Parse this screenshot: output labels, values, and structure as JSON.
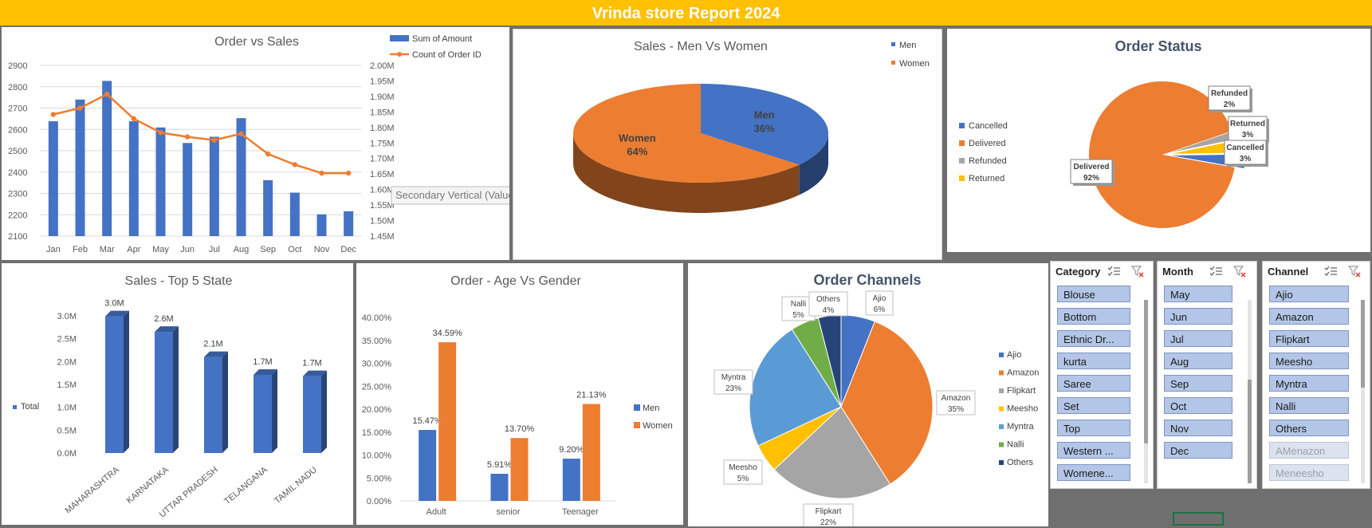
{
  "header": {
    "title": "Vrinda store Report 2024"
  },
  "charts": {
    "order_sales": {
      "type": "bar",
      "title": "Order vs Sales",
      "categories": [
        "Jan",
        "Feb",
        "Mar",
        "Apr",
        "May",
        "Jun",
        "Jul",
        "Aug",
        "Sep",
        "Oct",
        "Nov",
        "Dec"
      ],
      "series": [
        {
          "name": "Sum of Amount",
          "kind": "bar",
          "axis": "secondary",
          "values": [
            1.82,
            1.89,
            1.95,
            1.82,
            1.8,
            1.75,
            1.77,
            1.83,
            1.63,
            1.59,
            1.52,
            1.53
          ]
        },
        {
          "name": "Count of Order ID",
          "kind": "line",
          "axis": "primary",
          "values": [
            2670,
            2700,
            2765,
            2650,
            2585,
            2565,
            2550,
            2580,
            2485,
            2435,
            2395,
            2395
          ]
        }
      ],
      "ylim": [
        2100,
        2900
      ],
      "yticks": [
        "2900",
        "2800",
        "2700",
        "2600",
        "2500",
        "2400",
        "2300",
        "2200",
        "2100"
      ],
      "y2lim": [
        1.45,
        2.0
      ],
      "y2ticks": [
        "2.00M",
        "1.95M",
        "1.90M",
        "1.85M",
        "1.80M",
        "1.75M",
        "1.70M",
        "1.65M",
        "1.60M",
        "1.55M",
        "1.50M",
        "1.45M"
      ],
      "tooltip": "Secondary Vertical (Value) Axis",
      "colors": {
        "bar": "#4472c4",
        "line": "#ed7d31"
      }
    },
    "men_women": {
      "type": "pie",
      "title": "Sales - Men Vs Women",
      "slices": [
        {
          "name": "Men",
          "label": "Men",
          "value": 36,
          "pct": "36%",
          "color": "#4472c4"
        },
        {
          "name": "Women",
          "label": "Women",
          "value": 64,
          "pct": "64%",
          "color": "#ed7d31"
        }
      ]
    },
    "order_status": {
      "type": "pie",
      "title": "Order Status",
      "legend": [
        "Cancelled",
        "Delivered",
        "Refunded",
        "Returned"
      ],
      "slices": [
        {
          "name": "Cancelled",
          "value": 3,
          "pct": "3%",
          "color": "#4472c4"
        },
        {
          "name": "Delivered",
          "value": 92,
          "pct": "92%",
          "color": "#ed7d31"
        },
        {
          "name": "Refunded",
          "value": 2,
          "pct": "2%",
          "color": "#a5a5a5"
        },
        {
          "name": "Returned",
          "value": 3,
          "pct": "3%",
          "color": "#ffc000"
        }
      ]
    },
    "top_states": {
      "type": "bar",
      "title": "Sales - Top 5 State",
      "legend": "Total",
      "categories": [
        "MAHARASHTRA",
        "KARNATAKA",
        "UTTAR PRADESH",
        "TELANGANA",
        "TAMIL NADU"
      ],
      "values": [
        2.99,
        2.65,
        2.1,
        1.71,
        1.68
      ],
      "labels": [
        "3.0M",
        "2.6M",
        "2.1M",
        "1.7M",
        "1.7M"
      ],
      "ylim": [
        0,
        3.0
      ],
      "yticks": [
        "0.0M",
        "0.5M",
        "1.0M",
        "1.5M",
        "2.0M",
        "2.5M",
        "3.0M"
      ],
      "color": "#4472c4"
    },
    "age_gender": {
      "type": "bar",
      "title": "Order - Age Vs Gender",
      "categories": [
        "Adult",
        "senior",
        "Teenager"
      ],
      "series": [
        {
          "name": "Men",
          "values": [
            15.47,
            5.91,
            9.2
          ],
          "labels": [
            "15.47%",
            "5.91%",
            "9.20%"
          ],
          "color": "#4472c4"
        },
        {
          "name": "Women",
          "values": [
            34.59,
            13.7,
            21.13
          ],
          "labels": [
            "34.59%",
            "13.70%",
            "21.13%"
          ],
          "color": "#ed7d31"
        }
      ],
      "ylim": [
        0,
        40
      ],
      "yticks": [
        "0.00%",
        "5.00%",
        "10.00%",
        "15.00%",
        "20.00%",
        "25.00%",
        "30.00%",
        "35.00%",
        "40.00%"
      ]
    },
    "channels": {
      "type": "pie",
      "title": "Order Channels",
      "slices": [
        {
          "name": "Ajio",
          "value": 6,
          "pct": "6%",
          "color": "#4472c4"
        },
        {
          "name": "Amazon",
          "value": 35,
          "pct": "35%",
          "color": "#ed7d31"
        },
        {
          "name": "Flipkart",
          "value": 22,
          "pct": "22%",
          "color": "#a5a5a5"
        },
        {
          "name": "Meesho",
          "value": 5,
          "pct": "5%",
          "color": "#ffc000"
        },
        {
          "name": "Myntra",
          "value": 23,
          "pct": "23%",
          "color": "#5b9bd5"
        },
        {
          "name": "Nalli",
          "value": 5,
          "pct": "5%",
          "color": "#70ad47"
        },
        {
          "name": "Others",
          "value": 4,
          "pct": "4%",
          "color": "#264478"
        }
      ]
    }
  },
  "chart_data": [
    {
      "type": "bar",
      "title": "Order vs Sales",
      "categories": [
        "Jan",
        "Feb",
        "Mar",
        "Apr",
        "May",
        "Jun",
        "Jul",
        "Aug",
        "Sep",
        "Oct",
        "Nov",
        "Dec"
      ],
      "series": [
        {
          "name": "Sum of Amount",
          "values": [
            1.82,
            1.89,
            1.95,
            1.82,
            1.8,
            1.75,
            1.77,
            1.83,
            1.63,
            1.59,
            1.52,
            1.53
          ]
        },
        {
          "name": "Count of Order ID",
          "values": [
            2670,
            2700,
            2765,
            2650,
            2585,
            2565,
            2550,
            2580,
            2485,
            2435,
            2395,
            2395
          ]
        }
      ],
      "ylim": [
        2100,
        2900
      ],
      "y2lim": [
        1.45,
        2.0
      ]
    },
    {
      "type": "pie",
      "title": "Sales - Men Vs Women",
      "categories": [
        "Men",
        "Women"
      ],
      "values": [
        36,
        64
      ]
    },
    {
      "type": "pie",
      "title": "Order Status",
      "categories": [
        "Cancelled",
        "Delivered",
        "Refunded",
        "Returned"
      ],
      "values": [
        3,
        92,
        2,
        3
      ]
    },
    {
      "type": "bar",
      "title": "Sales - Top 5 State",
      "categories": [
        "MAHARASHTRA",
        "KARNATAKA",
        "UTTAR PRADESH",
        "TELANGANA",
        "TAMIL NADU"
      ],
      "values": [
        2.99,
        2.65,
        2.1,
        1.71,
        1.68
      ],
      "ylim": [
        0,
        3.0
      ]
    },
    {
      "type": "bar",
      "title": "Order - Age Vs Gender",
      "categories": [
        "Adult",
        "senior",
        "Teenager"
      ],
      "series": [
        {
          "name": "Men",
          "values": [
            15.47,
            5.91,
            9.2
          ]
        },
        {
          "name": "Women",
          "values": [
            34.59,
            13.7,
            21.13
          ]
        }
      ],
      "ylim": [
        0,
        40
      ]
    },
    {
      "type": "pie",
      "title": "Order Channels",
      "categories": [
        "Ajio",
        "Amazon",
        "Flipkart",
        "Meesho",
        "Myntra",
        "Nalli",
        "Others"
      ],
      "values": [
        6,
        35,
        22,
        5,
        23,
        5,
        4
      ]
    }
  ],
  "slicers": {
    "category": {
      "title": "Category",
      "items": [
        "Blouse",
        "Bottom",
        "Ethnic Dr...",
        "kurta",
        "Saree",
        "Set",
        "Top",
        "Western ...",
        "Womene..."
      ],
      "disabled": []
    },
    "month": {
      "title": "Month",
      "items": [
        "May",
        "Jun",
        "Jul",
        "Aug",
        "Sep",
        "Oct",
        "Nov",
        "Dec"
      ],
      "disabled": []
    },
    "channel": {
      "title": "Channel",
      "items": [
        "Ajio",
        "Amazon",
        "Flipkart",
        "Meesho",
        "Myntra",
        "Nalli",
        "Others",
        "AMenazon",
        "Meneesho"
      ],
      "disabled": [
        "AMenazon",
        "Meneesho"
      ]
    }
  }
}
